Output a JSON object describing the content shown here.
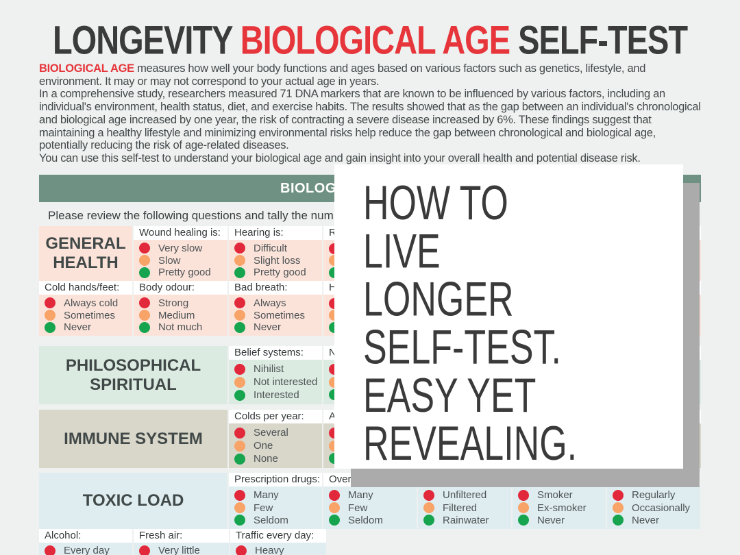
{
  "colors": {
    "page_bg": "#eef1ef",
    "accent_red": "#e6353b",
    "teal_bar": "#6f9183",
    "red": "#e2293b",
    "orange": "#f8a367",
    "green": "#16a44f",
    "shadow_gray": "#ababab"
  },
  "title": {
    "part1": "LONGEVITY ",
    "highlight": "BIOLOGICAL AGE",
    "part2": " SELF-TEST"
  },
  "intro": {
    "lead": "BIOLOGICAL AGE",
    "p1": " measures how well your body functions and ages based on various factors such as genetics, lifestyle, and environment. It may or may not correspond to your actual age in years.",
    "p2": "In a comprehensive study, researchers measured 71 DNA markers that are known to be influenced by various factors, including an individual's environment, health status, diet, and exercise habits. The results showed that as the gap between an individual's chronological and biological age increased by one year, the risk of contracting a severe disease increased by 6%. These findings suggest that maintaining a healthy lifestyle and minimizing environmental risks help reduce the gap between chronological and biological age, potentially reducing the risk of age-related diseases.",
    "p3": "You can use this self-test to understand your biological age and gain insight into your overall health and potential disease risk."
  },
  "header_bar": {
    "visible_text": "BIOLOGI"
  },
  "instruction": "Please review the following questions and tally the num",
  "overlay": {
    "lines": [
      "HOW TO",
      "LIVE",
      "LONGER",
      "SELF-TEST.",
      "EASY YET",
      "REVEALING."
    ]
  },
  "sections": {
    "general_health": {
      "label": "GENERAL HEALTH",
      "bg": "#fbe3da",
      "rows": [
        {
          "cells": [
            {
              "question": "Wound healing is:",
              "options": [
                {
                  "level": "red",
                  "label": "Very slow"
                },
                {
                  "level": "orange",
                  "label": "Slow"
                },
                {
                  "level": "green",
                  "label": "Pretty good"
                }
              ]
            },
            {
              "question": "Hearing is:",
              "options": [
                {
                  "level": "red",
                  "label": "Difficult"
                },
                {
                  "level": "orange",
                  "label": "Slight loss"
                },
                {
                  "level": "green",
                  "label": "Pretty good"
                }
              ]
            },
            {
              "question": "R",
              "options": [
                {
                  "level": "red",
                  "label": ""
                },
                {
                  "level": "orange",
                  "label": ""
                },
                {
                  "level": "green",
                  "label": ""
                }
              ]
            }
          ]
        },
        {
          "cells": [
            {
              "question": "Cold hands/feet:",
              "options": [
                {
                  "level": "red",
                  "label": "Always cold"
                },
                {
                  "level": "orange",
                  "label": "Sometimes"
                },
                {
                  "level": "green",
                  "label": "Never"
                }
              ]
            },
            {
              "question": "Body odour:",
              "options": [
                {
                  "level": "red",
                  "label": "Strong"
                },
                {
                  "level": "orange",
                  "label": "Medium"
                },
                {
                  "level": "green",
                  "label": "Not much"
                }
              ]
            },
            {
              "question": "Bad breath:",
              "options": [
                {
                  "level": "red",
                  "label": "Always"
                },
                {
                  "level": "orange",
                  "label": "Sometimes"
                },
                {
                  "level": "green",
                  "label": "Never"
                }
              ]
            },
            {
              "question": "H",
              "options": [
                {
                  "level": "red",
                  "label": ""
                },
                {
                  "level": "orange",
                  "label": ""
                },
                {
                  "level": "green",
                  "label": ""
                }
              ]
            }
          ]
        }
      ]
    },
    "philosophical": {
      "label": "PHILOSOPHICAL SPIRITUAL",
      "bg": "#dcebe2",
      "rows": [
        {
          "cells": [
            {
              "question": "Belief systems:",
              "options": [
                {
                  "level": "red",
                  "label": "Nihilist"
                },
                {
                  "level": "orange",
                  "label": "Not interested"
                },
                {
                  "level": "green",
                  "label": "Interested"
                }
              ]
            },
            {
              "question": "N",
              "options": [
                {
                  "level": "red",
                  "label": ""
                },
                {
                  "level": "orange",
                  "label": ""
                },
                {
                  "level": "green",
                  "label": ""
                }
              ]
            }
          ]
        }
      ]
    },
    "immune": {
      "label": "IMMUNE SYSTEM",
      "bg": "#d9d6ca",
      "rows": [
        {
          "cells": [
            {
              "question": "Colds per year:",
              "options": [
                {
                  "level": "red",
                  "label": "Several"
                },
                {
                  "level": "orange",
                  "label": "One"
                },
                {
                  "level": "green",
                  "label": "None"
                }
              ]
            },
            {
              "question": "A",
              "options": [
                {
                  "level": "red",
                  "label": ""
                },
                {
                  "level": "orange",
                  "label": ""
                },
                {
                  "level": "green",
                  "label": ""
                }
              ]
            }
          ]
        }
      ]
    },
    "toxic": {
      "label": "TOXIC LOAD",
      "bg": "#dfedf0",
      "rows": [
        {
          "cells": [
            {
              "question": "Prescription drugs:",
              "options": [
                {
                  "level": "red",
                  "label": "Many"
                },
                {
                  "level": "orange",
                  "label": "Few"
                },
                {
                  "level": "green",
                  "label": "Seldom"
                }
              ]
            },
            {
              "question": "Over-",
              "options": [
                {
                  "level": "red",
                  "label": "Many"
                },
                {
                  "level": "orange",
                  "label": "Few"
                },
                {
                  "level": "green",
                  "label": "Seldom"
                }
              ]
            },
            {
              "question": "",
              "options": [
                {
                  "level": "red",
                  "label": "Unfiltered"
                },
                {
                  "level": "orange",
                  "label": "Filtered"
                },
                {
                  "level": "green",
                  "label": "Rainwater"
                }
              ]
            },
            {
              "question": "",
              "options": [
                {
                  "level": "red",
                  "label": "Smoker"
                },
                {
                  "level": "orange",
                  "label": "Ex-smoker"
                },
                {
                  "level": "green",
                  "label": "Never"
                }
              ]
            },
            {
              "question": "",
              "options": [
                {
                  "level": "red",
                  "label": "Regularly"
                },
                {
                  "level": "orange",
                  "label": "Occasionally"
                },
                {
                  "level": "green",
                  "label": "Never"
                }
              ]
            }
          ]
        },
        {
          "cells": [
            {
              "question": "Alcohol:",
              "options": [
                {
                  "level": "red",
                  "label": "Every day"
                }
              ]
            },
            {
              "question": "Fresh air:",
              "options": [
                {
                  "level": "red",
                  "label": "Very little"
                }
              ]
            },
            {
              "question": "Traffic every day:",
              "options": [
                {
                  "level": "red",
                  "label": "Heavy"
                }
              ]
            }
          ]
        }
      ]
    }
  }
}
